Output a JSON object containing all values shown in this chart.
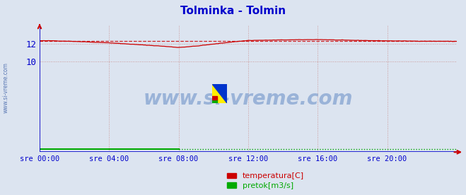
{
  "title": "Tolminka - Tolmin",
  "title_color": "#0000cc",
  "title_fontsize": 11,
  "bg_color": "#dce4f0",
  "plot_bg_color": "#dce4f0",
  "xlim": [
    0,
    288
  ],
  "ylim": [
    0,
    14.0
  ],
  "yticks": [
    10,
    12
  ],
  "xtick_labels": [
    "sre 00:00",
    "sre 04:00",
    "sre 08:00",
    "sre 12:00",
    "sre 16:00",
    "sre 20:00"
  ],
  "xtick_positions": [
    0,
    48,
    96,
    144,
    192,
    240
  ],
  "temp_color": "#cc0000",
  "pretok_solid_color": "#00aa00",
  "pretok_dot_color": "#00aa00",
  "blue_line_color": "#0000cc",
  "axis_color": "#0000cc",
  "grid_color": "#cc9999",
  "watermark": "www.si-vreme.com",
  "watermark_color": "#7799cc",
  "legend_items": [
    "temperatura[C]",
    "pretok[m3/s]"
  ],
  "legend_colors": [
    "#cc0000",
    "#00aa00"
  ],
  "avg_line_value": 12.3,
  "pretok_value": 0.3,
  "left_label": "www.si-vreme.com",
  "left_label_color": "#4466aa",
  "arrow_color": "#cc0000"
}
